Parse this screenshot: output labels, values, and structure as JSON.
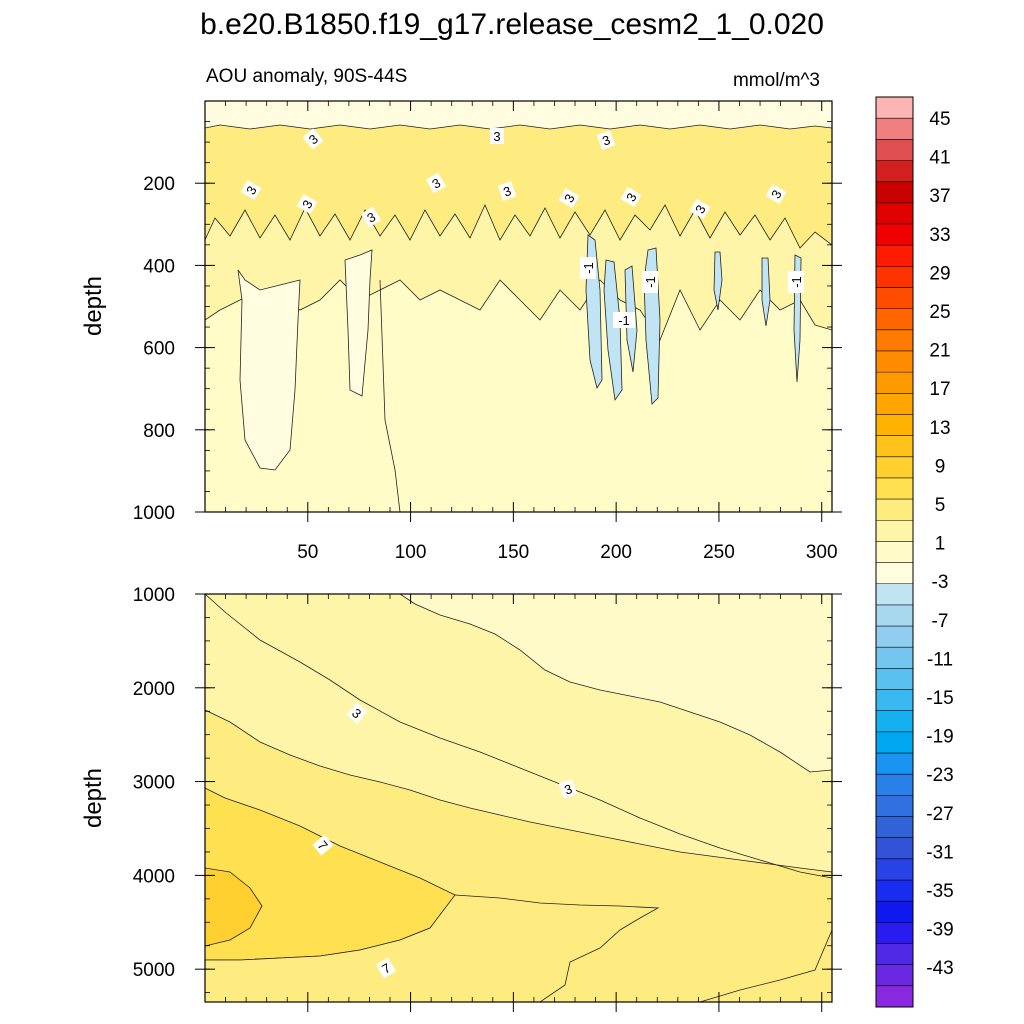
{
  "chart_data": {
    "type": "contour",
    "title": "b.e20.B1850.f19_g17.release_cesm2_1_0.020",
    "units": "mmol/m^3",
    "colorbar": {
      "labels": [
        "45",
        "41",
        "37",
        "33",
        "29",
        "25",
        "21",
        "17",
        "13",
        "9",
        "5",
        "1",
        "-3",
        "-7",
        "-11",
        "-15",
        "-19",
        "-23",
        "-27",
        "-31",
        "-35",
        "-39",
        "-43"
      ],
      "colors": [
        "#fcb4b4",
        "#f08080",
        "#e05050",
        "#d22020",
        "#c80000",
        "#e00000",
        "#f00000",
        "#ff1a00",
        "#ff3300",
        "#ff4d00",
        "#ff6600",
        "#ff7a00",
        "#ff8c00",
        "#ff9900",
        "#ffa600",
        "#ffb300",
        "#ffc21a",
        "#ffd030",
        "#ffe050",
        "#ffec80",
        "#fff5a8",
        "#fffac8",
        "#fffce0",
        "#c0e4f4",
        "#a8d8f0",
        "#90cef0",
        "#74c6f0",
        "#5ac0f0",
        "#3cb8f0",
        "#14b0f0",
        "#00a6f0",
        "#1a94f0",
        "#2880e8",
        "#3070e0",
        "#3262d8",
        "#3252d8",
        "#2842e8",
        "#1a2cf0",
        "#1018f0",
        "#2a1cf0",
        "#5028e8",
        "#6a28e0",
        "#8a28e0"
      ]
    },
    "panels": [
      {
        "name": "upper",
        "subtitle": "AOU anomaly, 90S-44S",
        "ylabel": "depth",
        "xlim": [
          0,
          305
        ],
        "ylim": [
          1000,
          0
        ],
        "xticks": [
          50,
          100,
          150,
          200,
          250,
          300
        ],
        "yticks": [
          200,
          400,
          600,
          800,
          1000
        ],
        "contour_labels": [
          "3",
          "3",
          "3",
          "3",
          "3",
          "3",
          "3",
          "3",
          "3",
          "3",
          "3",
          "3",
          "-1",
          "-1",
          "-1",
          "-1"
        ]
      },
      {
        "name": "lower",
        "subtitle": "",
        "ylabel": "depth",
        "xlim": [
          0,
          305
        ],
        "ylim": [
          5350,
          1000
        ],
        "xticks": [
          50,
          100,
          150,
          200,
          250,
          300
        ],
        "yticks": [
          1000,
          2000,
          3000,
          4000,
          5000
        ],
        "contour_labels": [
          "3",
          "3",
          "7",
          "7"
        ]
      }
    ]
  }
}
